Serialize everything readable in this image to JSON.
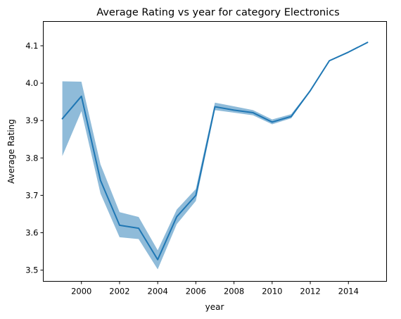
{
  "chart_data": {
    "type": "line",
    "title": "Average Rating vs year for category Electronics",
    "xlabel": "year",
    "ylabel": "Average Rating",
    "xlim": [
      1998.0,
      2016.0
    ],
    "ylim": [
      3.47,
      4.165
    ],
    "xticks": [
      2000,
      2002,
      2004,
      2006,
      2008,
      2010,
      2012,
      2014
    ],
    "yticks": [
      3.5,
      3.6,
      3.7,
      3.8,
      3.9,
      4.0,
      4.1
    ],
    "grid": false,
    "colors": {
      "line": "#1f77b4",
      "band": "#1f77b4"
    },
    "series": [
      {
        "x": [
          1999,
          2000,
          2001,
          2002,
          2003,
          2004,
          2005,
          2006,
          2007,
          2008,
          2009,
          2010,
          2011,
          2012,
          2013,
          2014,
          2015
        ],
        "values": [
          3.905,
          3.965,
          3.74,
          3.62,
          3.612,
          3.528,
          3.643,
          3.7,
          3.937,
          3.928,
          3.921,
          3.896,
          3.911,
          3.98,
          4.06,
          4.083,
          4.109
        ],
        "lower": [
          3.805,
          3.925,
          3.705,
          3.588,
          3.583,
          3.502,
          3.623,
          3.685,
          3.928,
          3.921,
          3.914,
          3.89,
          3.906,
          3.978,
          4.059,
          4.082,
          4.108
        ],
        "upper": [
          4.005,
          4.004,
          3.783,
          3.655,
          3.642,
          3.553,
          3.662,
          3.717,
          3.948,
          3.938,
          3.928,
          3.903,
          3.917,
          3.982,
          4.061,
          4.084,
          4.11
        ]
      }
    ]
  }
}
